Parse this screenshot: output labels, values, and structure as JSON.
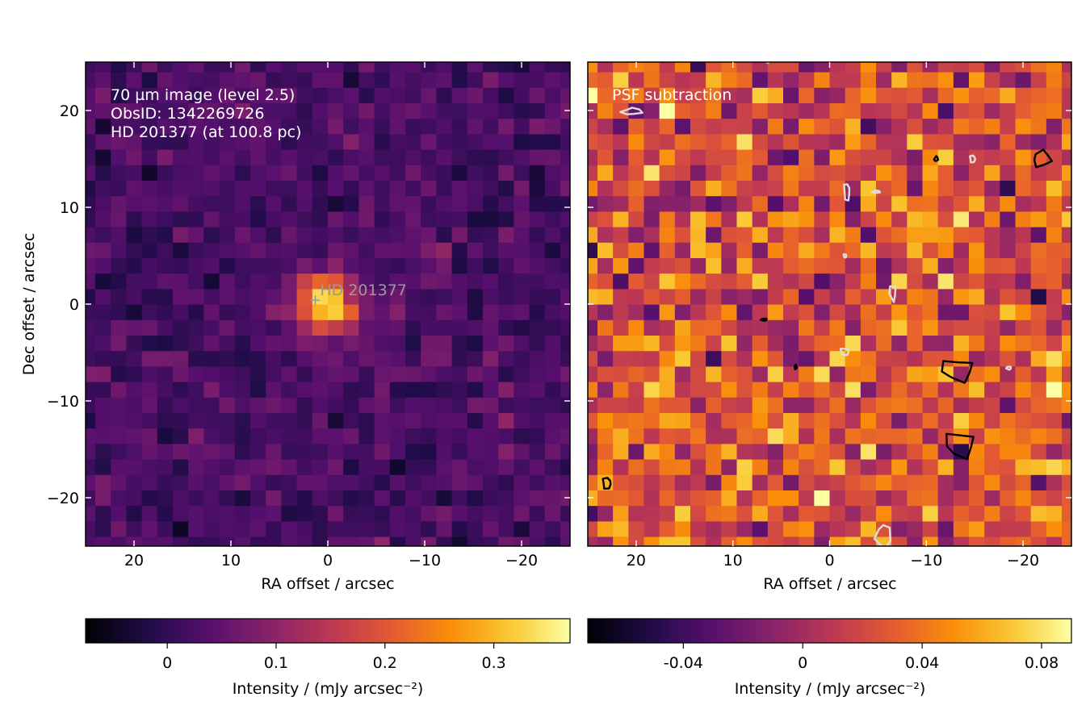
{
  "chart_data": [
    {
      "type": "heatmap",
      "panel": "left",
      "xlabel": "RA offset / arcsec",
      "ylabel": "Dec offset / arcsec",
      "xlim": [
        25,
        -25
      ],
      "ylim": [
        -25,
        25
      ],
      "xticks": [
        20,
        10,
        0,
        -10,
        -20
      ],
      "xtick_labels": [
        "20",
        "10",
        "0",
        "−10",
        "−20"
      ],
      "yticks": [
        20,
        10,
        0,
        -10,
        -20
      ],
      "ytick_labels": [
        "20",
        "10",
        "0",
        "−10",
        "−20"
      ],
      "pixel_size_arcsec": 1.6,
      "colormap": "inferno",
      "vmin": -0.075,
      "vmax": 0.37,
      "background_level": 0.025,
      "noise_rms": 0.025,
      "source": {
        "ra": 0.0,
        "dec": 0.0,
        "peak": 0.34
      },
      "annotation_lines": [
        "70 µm image (level 2.5)",
        "ObsID: 1342269726",
        "HD 201377 (at 100.8 pc)"
      ],
      "marker": {
        "symbol": "+",
        "ra": 1.3,
        "dec": 0.6,
        "label": "HD 201377"
      },
      "colorbar": {
        "label": "Intensity / (mJy arcsec⁻²)",
        "ticks": [
          0,
          0.1,
          0.2,
          0.3
        ],
        "tick_labels": [
          "0",
          "0.1",
          "0.2",
          "0.3"
        ]
      }
    },
    {
      "type": "heatmap",
      "panel": "right",
      "xlabel": "RA offset / arcsec",
      "xlim": [
        25,
        -25
      ],
      "ylim": [
        -25,
        25
      ],
      "xticks": [
        20,
        10,
        0,
        -10,
        -20
      ],
      "xtick_labels": [
        "20",
        "10",
        "0",
        "−10",
        "−20"
      ],
      "pixel_size_arcsec": 1.6,
      "colormap": "inferno",
      "vmin": -0.072,
      "vmax": 0.09,
      "background_level": 0.025,
      "noise_rms": 0.025,
      "annotation_lines": [
        "PSF subtraction"
      ],
      "contours": {
        "positive_color": "#000000",
        "negative_color": "#dddddd",
        "positive": [
          {
            "ra": -13.2,
            "dec": -6.8,
            "w": 3.8,
            "h": 2.6
          },
          {
            "ra": -13.5,
            "dec": -14.5,
            "w": 3.6,
            "h": 3.0
          },
          {
            "ra": -22.0,
            "dec": 15.0,
            "w": 2.4,
            "h": 1.8
          },
          {
            "ra": 23.0,
            "dec": -18.5,
            "w": 1.2,
            "h": 1.3
          },
          {
            "ra": -11.0,
            "dec": 15.0,
            "w": 0.4,
            "h": 0.6
          },
          {
            "ra": 6.8,
            "dec": -1.6,
            "w": 0.6,
            "h": 0.3
          },
          {
            "ra": 3.5,
            "dec": -6.5,
            "w": 0.3,
            "h": 0.5
          }
        ],
        "negative": [
          {
            "ra": 20.5,
            "dec": 19.9,
            "w": 2.2,
            "h": 0.8
          },
          {
            "ra": -1.8,
            "dec": 11.6,
            "w": 0.8,
            "h": 2.0
          },
          {
            "ra": -6.5,
            "dec": 1.2,
            "w": 0.7,
            "h": 2.0
          },
          {
            "ra": -1.6,
            "dec": -4.9,
            "w": 1.2,
            "h": 0.8
          },
          {
            "ra": -4.8,
            "dec": 11.6,
            "w": 0.8,
            "h": 0.3
          },
          {
            "ra": -1.6,
            "dec": 5.0,
            "w": 0.4,
            "h": 0.4
          },
          {
            "ra": -14.8,
            "dec": 15.0,
            "w": 0.8,
            "h": 0.8
          },
          {
            "ra": -18.5,
            "dec": -6.6,
            "w": 0.5,
            "h": 0.4
          },
          {
            "ra": -5.5,
            "dec": -24.0,
            "w": 1.6,
            "h": 3.0
          },
          {
            "ra": 6.5,
            "dec": 25.2,
            "w": 0.8,
            "h": 0.6
          }
        ]
      },
      "colorbar": {
        "label": "Intensity / (mJy arcsec⁻²)",
        "ticks": [
          -0.04,
          0,
          0.04,
          0.08
        ],
        "tick_labels": [
          "-0.04",
          "0",
          "0.04",
          "0.08"
        ]
      }
    }
  ]
}
